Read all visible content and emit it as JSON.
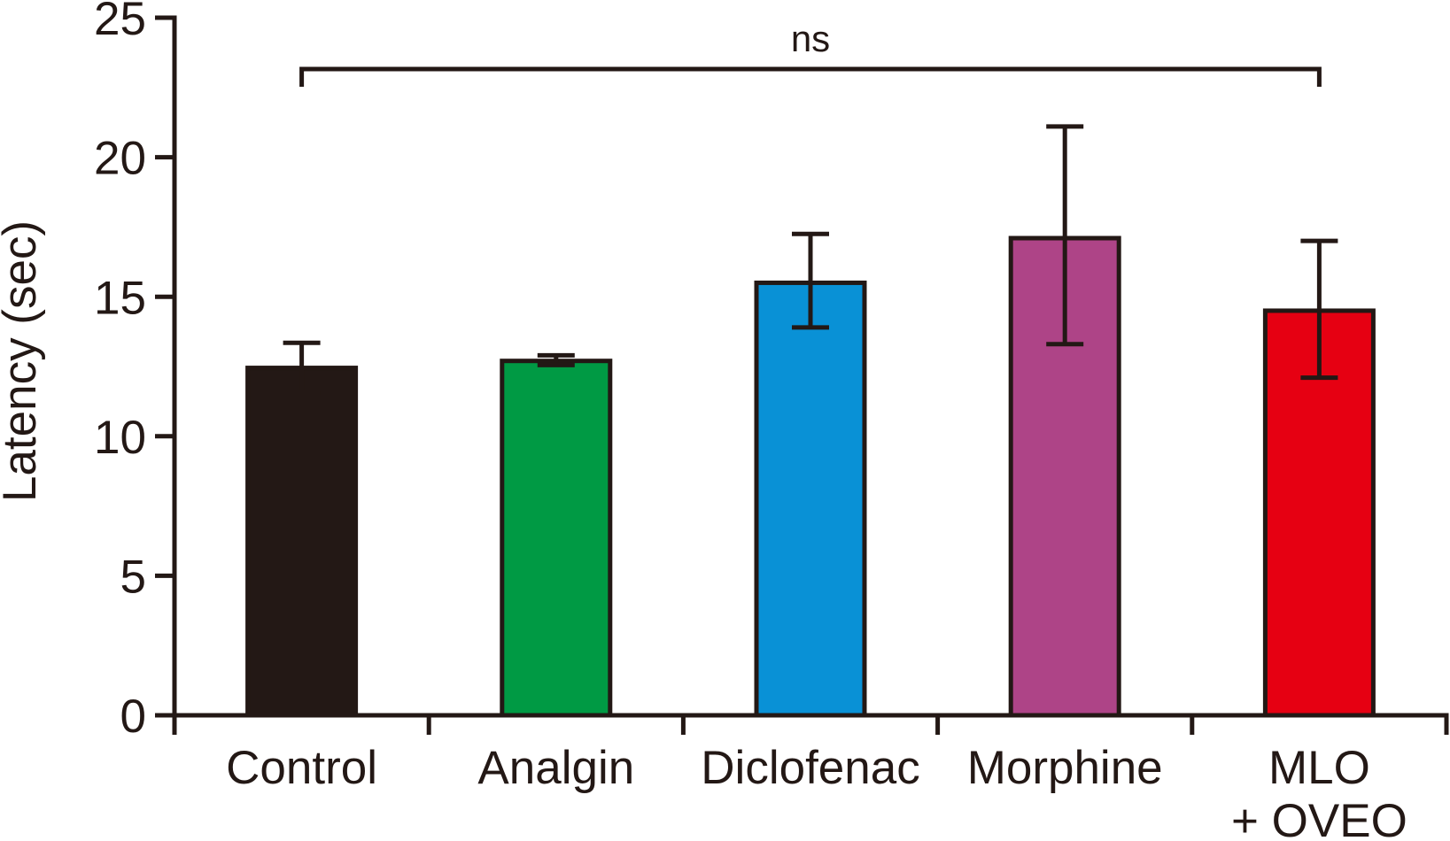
{
  "figure": {
    "title": "",
    "background": "#ffffff"
  },
  "chart_data": {
    "type": "bar",
    "title": "",
    "xlabel": "",
    "ylabel": "Latency (sec)",
    "categories": [
      "Control",
      "Analgin",
      "Diclofenac",
      "Morphine",
      "MLO + OVEO"
    ],
    "category_lines": [
      [
        "Control"
      ],
      [
        "Analgin"
      ],
      [
        "Diclofenac"
      ],
      [
        "Morphine"
      ],
      [
        "MLO",
        "+ OVEO"
      ]
    ],
    "values": [
      12.45,
      12.7,
      15.5,
      17.1,
      14.5
    ],
    "error_plus": [
      0.9,
      0.2,
      1.75,
      4.0,
      2.5
    ],
    "error_minus": [
      0.9,
      0.15,
      1.6,
      3.8,
      2.4
    ],
    "bar_colors": [
      "#231815",
      "#009A44",
      "#0991D6",
      "#AE4487",
      "#E60012"
    ],
    "ink_color": "#231815",
    "ylim": [
      0,
      25
    ],
    "yticks": [
      0,
      5,
      10,
      15,
      20,
      25
    ],
    "grid": false,
    "legend": "none",
    "annotation": {
      "type": "significance-bracket",
      "label": "ns",
      "from_category": "Control",
      "to_category": "MLO + OVEO"
    }
  }
}
